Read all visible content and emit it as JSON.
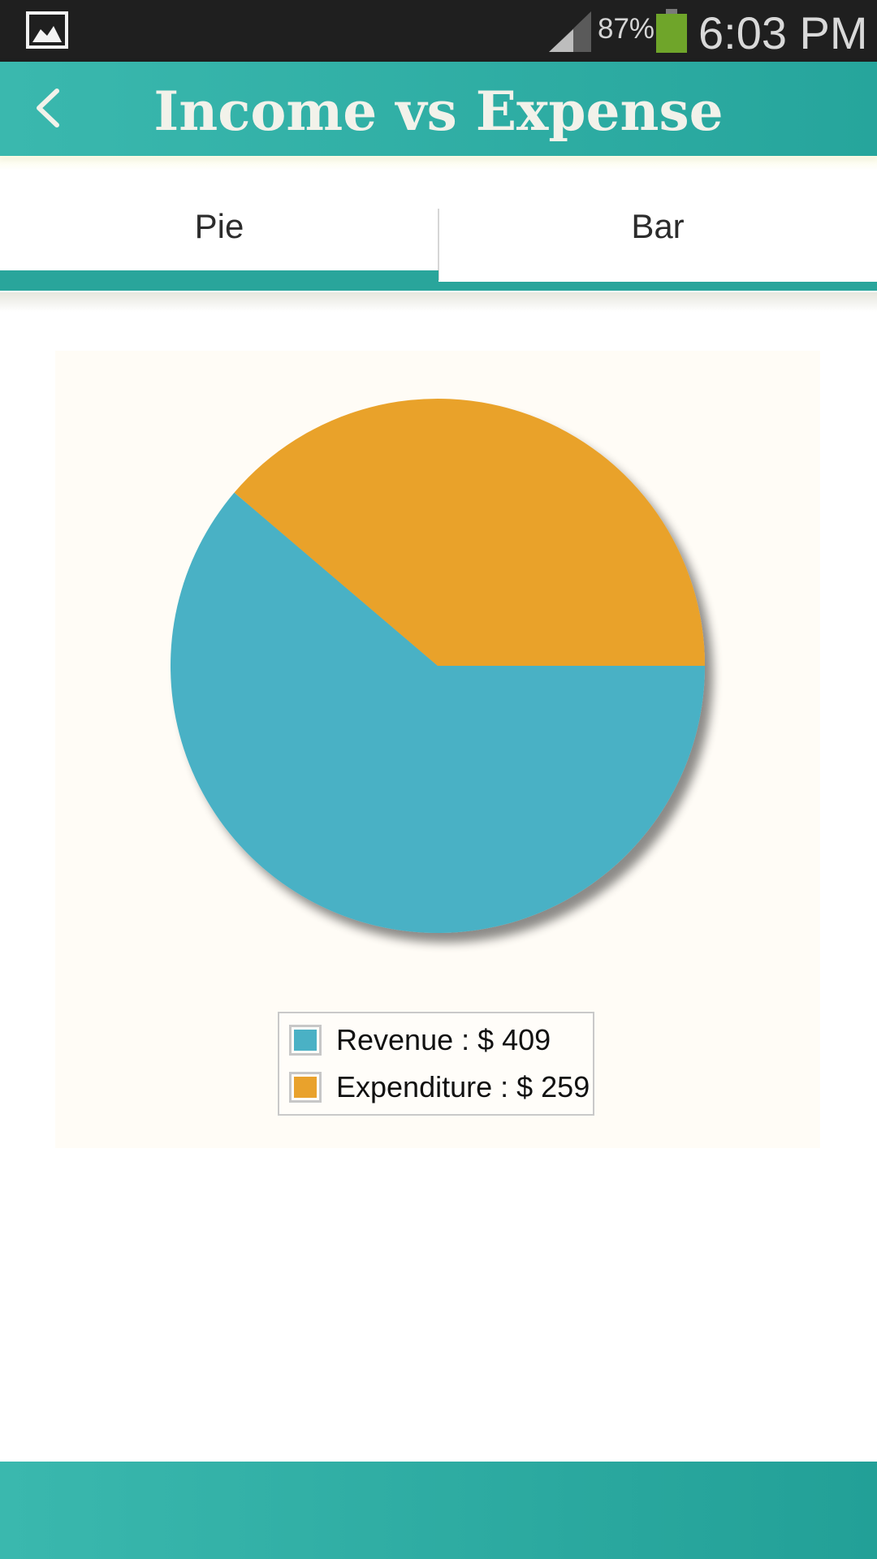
{
  "status_bar": {
    "battery_percent": "87%",
    "time": "6:03 PM",
    "icons": [
      "gallery-icon",
      "signal-icon",
      "battery-icon"
    ]
  },
  "app_bar": {
    "title": "Income vs Expense",
    "back_icon": "chevron-left-icon"
  },
  "tabs": [
    {
      "label": "Pie",
      "active": true
    },
    {
      "label": "Bar",
      "active": false
    }
  ],
  "colors": {
    "accent": "#29a59b",
    "revenue": "#4ab1c5",
    "expenditure": "#e9a22c"
  },
  "chart_data": {
    "type": "pie",
    "title": "",
    "slices": [
      {
        "label": "Revenue",
        "value": 409,
        "color": "#4ab1c5"
      },
      {
        "label": "Expenditure",
        "value": 259,
        "color": "#e9a22c"
      }
    ],
    "legend": [
      "Revenue : $ 409",
      "Expenditure : $ 259"
    ],
    "legend_placement": "bottom-center"
  }
}
